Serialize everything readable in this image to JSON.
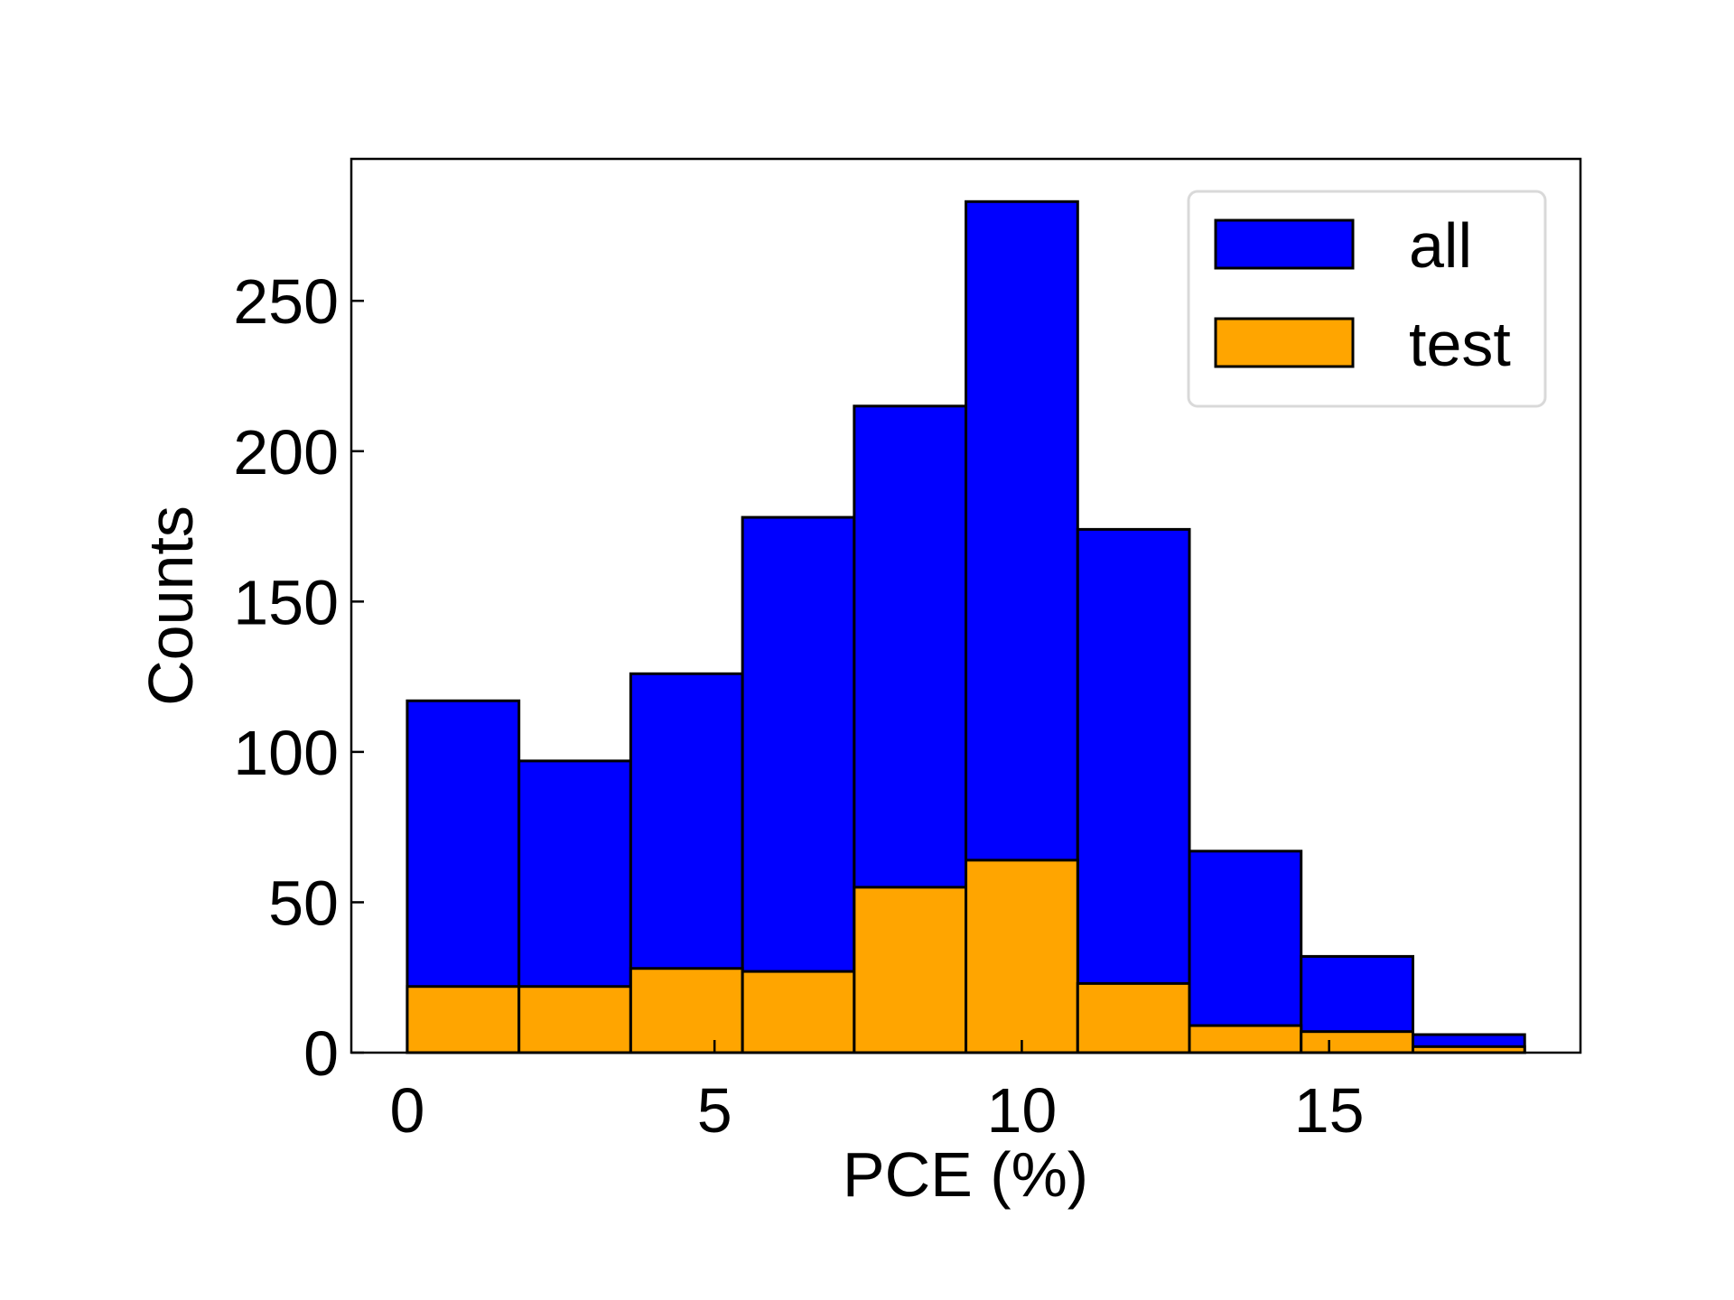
{
  "chart_data": {
    "type": "histogram",
    "xlabel": "PCE (%)",
    "ylabel": "Counts",
    "bins": [
      0,
      1.818,
      3.636,
      5.455,
      7.273,
      9.091,
      10.909,
      12.727,
      14.545,
      16.364,
      18.182
    ],
    "series": [
      {
        "name": "all",
        "color": "#0000ff",
        "values": [
          117,
          97,
          126,
          178,
          215,
          283,
          174,
          67,
          32,
          6
        ]
      },
      {
        "name": "test",
        "color": "#ffa500",
        "values": [
          22,
          22,
          28,
          27,
          55,
          64,
          23,
          9,
          7,
          2
        ]
      }
    ],
    "xlim": [
      -0.91,
      19.09
    ],
    "xticks": [
      0,
      5,
      10,
      15
    ],
    "ylim": [
      0,
      297.2
    ],
    "yticks": [
      0,
      50,
      100,
      150,
      200,
      250
    ],
    "legend": "upper right"
  }
}
